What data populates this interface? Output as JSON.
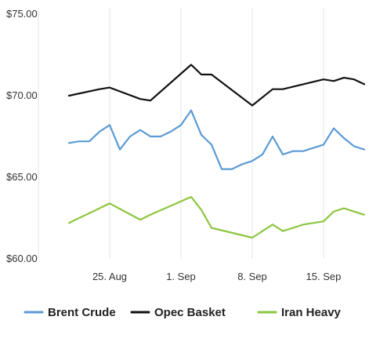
{
  "chart_data": {
    "type": "line",
    "title": "",
    "xlabel": "",
    "ylabel": "",
    "ylim": [
      60,
      75
    ],
    "y_ticks": [
      "$75.00",
      "$70.00",
      "$65.00",
      "$60.00"
    ],
    "y_tick_values": [
      75,
      70,
      65,
      60
    ],
    "x_ticks": [
      "25. Aug",
      "1. Sep",
      "8. Sep",
      "15. Sep"
    ],
    "grid": "vertical",
    "legend_position": "bottom",
    "series": [
      {
        "name": "Brent Crude",
        "color": "#5b9bd5",
        "x": [
          "2017-08-21",
          "2017-08-22",
          "2017-08-23",
          "2017-08-24",
          "2017-08-25",
          "2017-08-26",
          "2017-08-27",
          "2017-08-28",
          "2017-08-29",
          "2017-08-30",
          "2017-08-31",
          "2017-09-01",
          "2017-09-02",
          "2017-09-03",
          "2017-09-04",
          "2017-09-05",
          "2017-09-06",
          "2017-09-07",
          "2017-09-08",
          "2017-09-09",
          "2017-09-10",
          "2017-09-11",
          "2017-09-12",
          "2017-09-13",
          "2017-09-14",
          "2017-09-15",
          "2017-09-16",
          "2017-09-17",
          "2017-09-18",
          "2017-09-19"
        ],
        "values": [
          67.1,
          67.2,
          67.2,
          67.8,
          68.2,
          66.7,
          67.5,
          67.9,
          67.5,
          67.5,
          67.8,
          68.2,
          69.1,
          67.6,
          67.0,
          65.5,
          65.5,
          65.8,
          66.0,
          66.4,
          67.5,
          66.4,
          66.6,
          66.6,
          66.8,
          67.0,
          68.0,
          67.4,
          66.9,
          66.7
        ]
      },
      {
        "name": "Opec Basket",
        "color": "#111111",
        "x": [
          "2017-08-21",
          "2017-08-24",
          "2017-08-25",
          "2017-08-28",
          "2017-08-29",
          "2017-09-02",
          "2017-09-03",
          "2017-09-04",
          "2017-09-08",
          "2017-09-10",
          "2017-09-11",
          "2017-09-15",
          "2017-09-16",
          "2017-09-17",
          "2017-09-18",
          "2017-09-19"
        ],
        "values": [
          70.0,
          70.4,
          70.5,
          69.8,
          69.7,
          71.9,
          71.3,
          71.3,
          69.4,
          70.4,
          70.4,
          71.0,
          70.9,
          71.1,
          71.0,
          70.7
        ]
      },
      {
        "name": "Iran Heavy",
        "color": "#8cc63f",
        "x": [
          "2017-08-21",
          "2017-08-25",
          "2017-08-28",
          "2017-08-29",
          "2017-09-02",
          "2017-09-03",
          "2017-09-04",
          "2017-09-08",
          "2017-09-10",
          "2017-09-11",
          "2017-09-12",
          "2017-09-13",
          "2017-09-15",
          "2017-09-16",
          "2017-09-17",
          "2017-09-18",
          "2017-09-19"
        ],
        "values": [
          62.2,
          63.4,
          62.4,
          62.7,
          63.8,
          63.0,
          61.9,
          61.3,
          62.1,
          61.7,
          61.9,
          62.1,
          62.3,
          62.9,
          63.1,
          62.9,
          62.7
        ]
      }
    ]
  }
}
